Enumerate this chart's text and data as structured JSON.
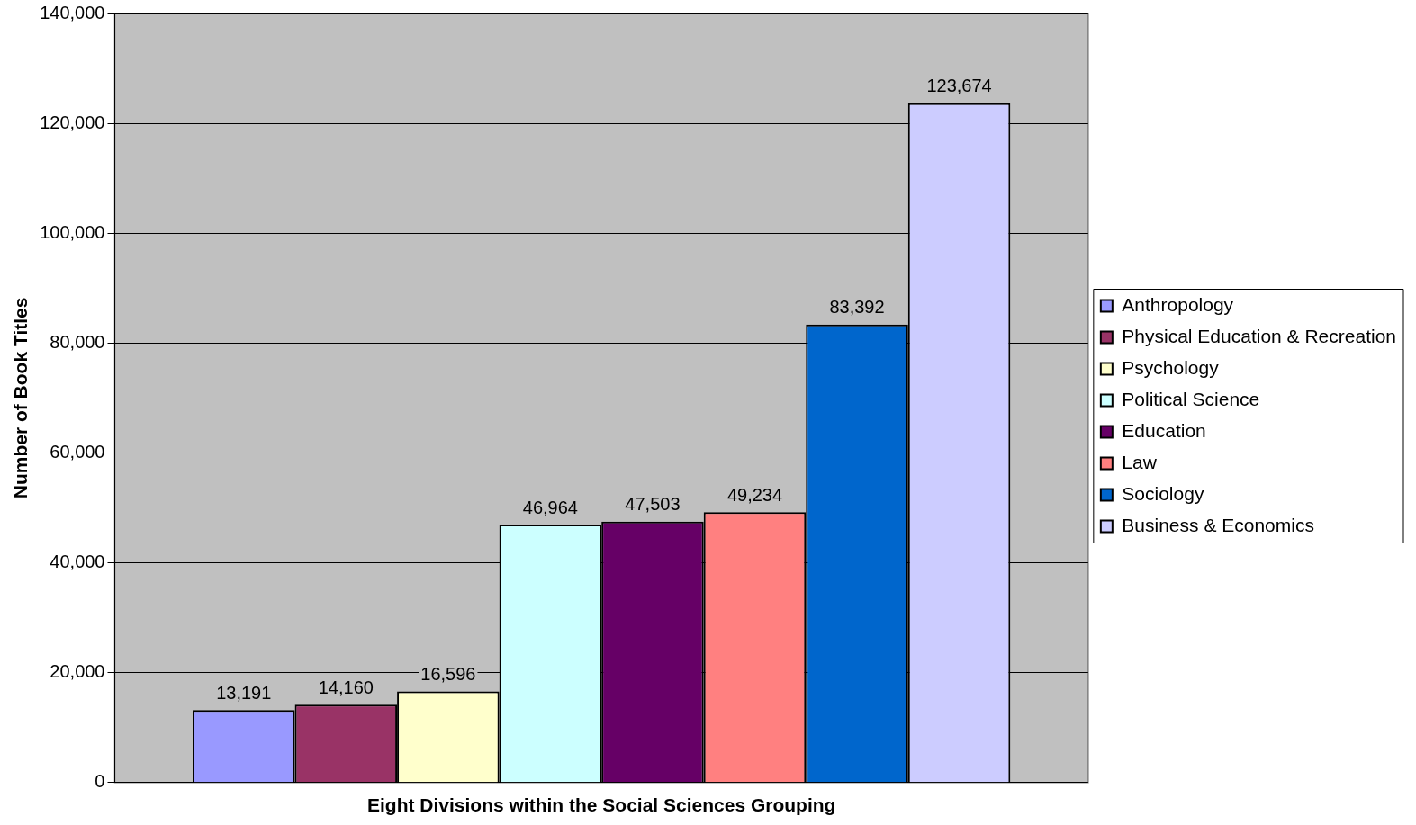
{
  "chart_data": {
    "type": "bar",
    "xlabel": "Eight Divisions within the Social Sciences Grouping",
    "ylabel": "Number of Book Titles",
    "categories": [
      null
    ],
    "series": [
      {
        "name": "Anthropology",
        "color": "#9999ff",
        "values": [
          13191
        ],
        "value_labels": [
          "13,191"
        ]
      },
      {
        "name": "Physical Education & Recreation",
        "color": "#993366",
        "values": [
          14160
        ],
        "value_labels": [
          "14,160"
        ]
      },
      {
        "name": "Psychology",
        "color": "#ffffcc",
        "values": [
          16596
        ],
        "value_labels": [
          "16,596"
        ]
      },
      {
        "name": "Political Science",
        "color": "#ccffff",
        "values": [
          46964
        ],
        "value_labels": [
          "46,964"
        ]
      },
      {
        "name": "Education",
        "color": "#660066",
        "values": [
          47503
        ],
        "value_labels": [
          "47,503"
        ]
      },
      {
        "name": "Law",
        "color": "#ff8080",
        "values": [
          49234
        ],
        "value_labels": [
          "49,234"
        ]
      },
      {
        "name": "Sociology",
        "color": "#0066cc",
        "values": [
          83392
        ],
        "value_labels": [
          "83,392"
        ]
      },
      {
        "name": "Business & Economics",
        "color": "#ccccff",
        "values": [
          123674
        ],
        "value_labels": [
          "123,674"
        ]
      }
    ],
    "ylim": [
      0,
      140000
    ],
    "yticks": [
      0,
      {
        "value": 20000,
        "label": "20,000"
      },
      {
        "value": 40000,
        "label": "40,000"
      },
      {
        "value": 60000,
        "label": "60,000"
      },
      {
        "value": 80000,
        "label": "80,000"
      },
      {
        "value": 100000,
        "label": "100,000"
      },
      {
        "value": 120000,
        "label": "120,000"
      },
      {
        "value": 140000,
        "label": "140,000"
      }
    ],
    "grid": "y",
    "legend": "right"
  }
}
